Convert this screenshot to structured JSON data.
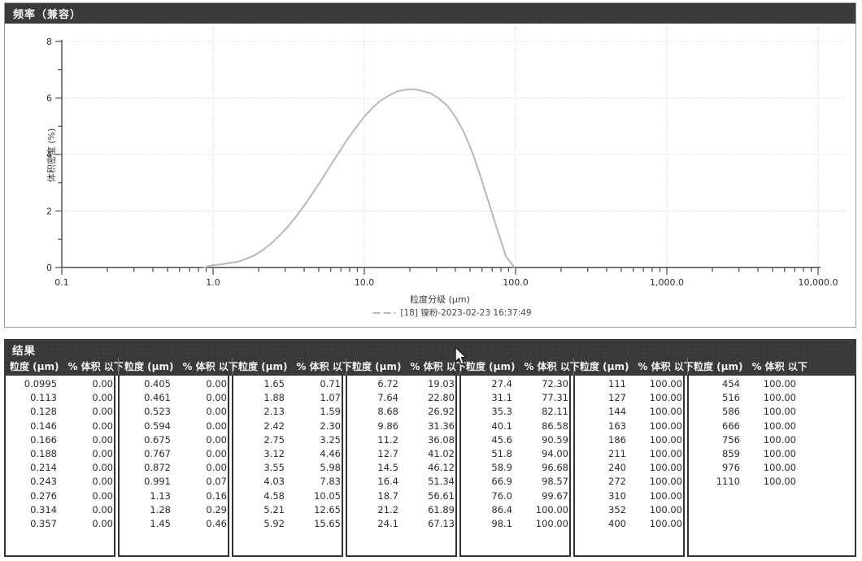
{
  "frequency_panel": {
    "title": "频率（兼容）"
  },
  "chart_data": {
    "type": "line",
    "title": "频率（兼容）",
    "xlabel": "粒度分级 (µm)",
    "ylabel": "体积密度 (%)",
    "x_scale": "log",
    "xlim": [
      0.1,
      10000
    ],
    "ylim": [
      0,
      8
    ],
    "x_tick_values": [
      0.1,
      1,
      10,
      100,
      1000,
      10000
    ],
    "x_tick_labels": [
      "0.1",
      "1.0",
      "10.0",
      "100.0",
      "1,000.0",
      "10,000.0"
    ],
    "y_ticks": [
      0,
      2,
      4,
      6,
      8
    ],
    "grid": "dotted",
    "legend_position": "bottom-center",
    "axis_color": "#4a4a4a",
    "grid_color": "#c9cec9",
    "series": [
      {
        "name": "[18] 镍粉-2023-02-23 16:37:49",
        "color": "#b4bab4",
        "points": [
          [
            0.872,
            0.0
          ],
          [
            0.991,
            0.08
          ],
          [
            1.13,
            0.11
          ],
          [
            1.28,
            0.16
          ],
          [
            1.45,
            0.2
          ],
          [
            1.65,
            0.3
          ],
          [
            1.88,
            0.43
          ],
          [
            2.13,
            0.62
          ],
          [
            2.42,
            0.85
          ],
          [
            2.75,
            1.13
          ],
          [
            3.12,
            1.44
          ],
          [
            3.55,
            1.81
          ],
          [
            4.03,
            2.21
          ],
          [
            4.58,
            2.65
          ],
          [
            5.21,
            3.1
          ],
          [
            5.92,
            3.58
          ],
          [
            6.72,
            4.03
          ],
          [
            7.64,
            4.5
          ],
          [
            8.68,
            4.91
          ],
          [
            9.86,
            5.3
          ],
          [
            11.2,
            5.63
          ],
          [
            12.7,
            5.89
          ],
          [
            14.5,
            6.08
          ],
          [
            16.4,
            6.23
          ],
          [
            18.7,
            6.29
          ],
          [
            21.2,
            6.31
          ],
          [
            24.1,
            6.25
          ],
          [
            27.4,
            6.17
          ],
          [
            31.1,
            5.98
          ],
          [
            35.3,
            5.73
          ],
          [
            40.1,
            5.33
          ],
          [
            45.6,
            4.78
          ],
          [
            51.8,
            4.07
          ],
          [
            58.9,
            3.2
          ],
          [
            66.9,
            2.25
          ],
          [
            76.0,
            1.31
          ],
          [
            86.4,
            0.39
          ],
          [
            98.1,
            0.0
          ]
        ]
      }
    ]
  },
  "results_panel": {
    "title": "结果",
    "size_header": "粒度 (µm)",
    "pct_header": "% 体积 以下",
    "groups": [
      {
        "rows": [
          [
            "0.0995",
            "0.00"
          ],
          [
            "0.113",
            "0.00"
          ],
          [
            "0.128",
            "0.00"
          ],
          [
            "0.146",
            "0.00"
          ],
          [
            "0.166",
            "0.00"
          ],
          [
            "0.188",
            "0.00"
          ],
          [
            "0.214",
            "0.00"
          ],
          [
            "0.243",
            "0.00"
          ],
          [
            "0.276",
            "0.00"
          ],
          [
            "0.314",
            "0.00"
          ],
          [
            "0.357",
            "0.00"
          ]
        ]
      },
      {
        "rows": [
          [
            "0.405",
            "0.00"
          ],
          [
            "0.461",
            "0.00"
          ],
          [
            "0.523",
            "0.00"
          ],
          [
            "0.594",
            "0.00"
          ],
          [
            "0.675",
            "0.00"
          ],
          [
            "0.767",
            "0.00"
          ],
          [
            "0.872",
            "0.00"
          ],
          [
            "0.991",
            "0.07"
          ],
          [
            "1.13",
            "0.16"
          ],
          [
            "1.28",
            "0.29"
          ],
          [
            "1.45",
            "0.46"
          ]
        ]
      },
      {
        "rows": [
          [
            "1.65",
            "0.71"
          ],
          [
            "1.88",
            "1.07"
          ],
          [
            "2.13",
            "1.59"
          ],
          [
            "2.42",
            "2.30"
          ],
          [
            "2.75",
            "3.25"
          ],
          [
            "3.12",
            "4.46"
          ],
          [
            "3.55",
            "5.98"
          ],
          [
            "4.03",
            "7.83"
          ],
          [
            "4.58",
            "10.05"
          ],
          [
            "5.21",
            "12.65"
          ],
          [
            "5.92",
            "15.65"
          ]
        ]
      },
      {
        "rows": [
          [
            "6.72",
            "19.03"
          ],
          [
            "7.64",
            "22.80"
          ],
          [
            "8.68",
            "26.92"
          ],
          [
            "9.86",
            "31.36"
          ],
          [
            "11.2",
            "36.08"
          ],
          [
            "12.7",
            "41.02"
          ],
          [
            "14.5",
            "46.12"
          ],
          [
            "16.4",
            "51.34"
          ],
          [
            "18.7",
            "56.61"
          ],
          [
            "21.2",
            "61.89"
          ],
          [
            "24.1",
            "67.13"
          ]
        ]
      },
      {
        "rows": [
          [
            "27.4",
            "72.30"
          ],
          [
            "31.1",
            "77.31"
          ],
          [
            "35.3",
            "82.11"
          ],
          [
            "40.1",
            "86.58"
          ],
          [
            "45.6",
            "90.59"
          ],
          [
            "51.8",
            "94.00"
          ],
          [
            "58.9",
            "96.68"
          ],
          [
            "66.9",
            "98.57"
          ],
          [
            "76.0",
            "99.67"
          ],
          [
            "86.4",
            "100.00"
          ],
          [
            "98.1",
            "100.00"
          ]
        ]
      },
      {
        "rows": [
          [
            "111",
            "100.00"
          ],
          [
            "127",
            "100.00"
          ],
          [
            "144",
            "100.00"
          ],
          [
            "163",
            "100.00"
          ],
          [
            "186",
            "100.00"
          ],
          [
            "211",
            "100.00"
          ],
          [
            "240",
            "100.00"
          ],
          [
            "272",
            "100.00"
          ],
          [
            "310",
            "100.00"
          ],
          [
            "352",
            "100.00"
          ],
          [
            "400",
            "100.00"
          ]
        ]
      },
      {
        "rows": [
          [
            "454",
            "100.00"
          ],
          [
            "516",
            "100.00"
          ],
          [
            "586",
            "100.00"
          ],
          [
            "666",
            "100.00"
          ],
          [
            "756",
            "100.00"
          ],
          [
            "859",
            "100.00"
          ],
          [
            "976",
            "100.00"
          ],
          [
            "1110",
            "100.00"
          ]
        ]
      }
    ]
  }
}
